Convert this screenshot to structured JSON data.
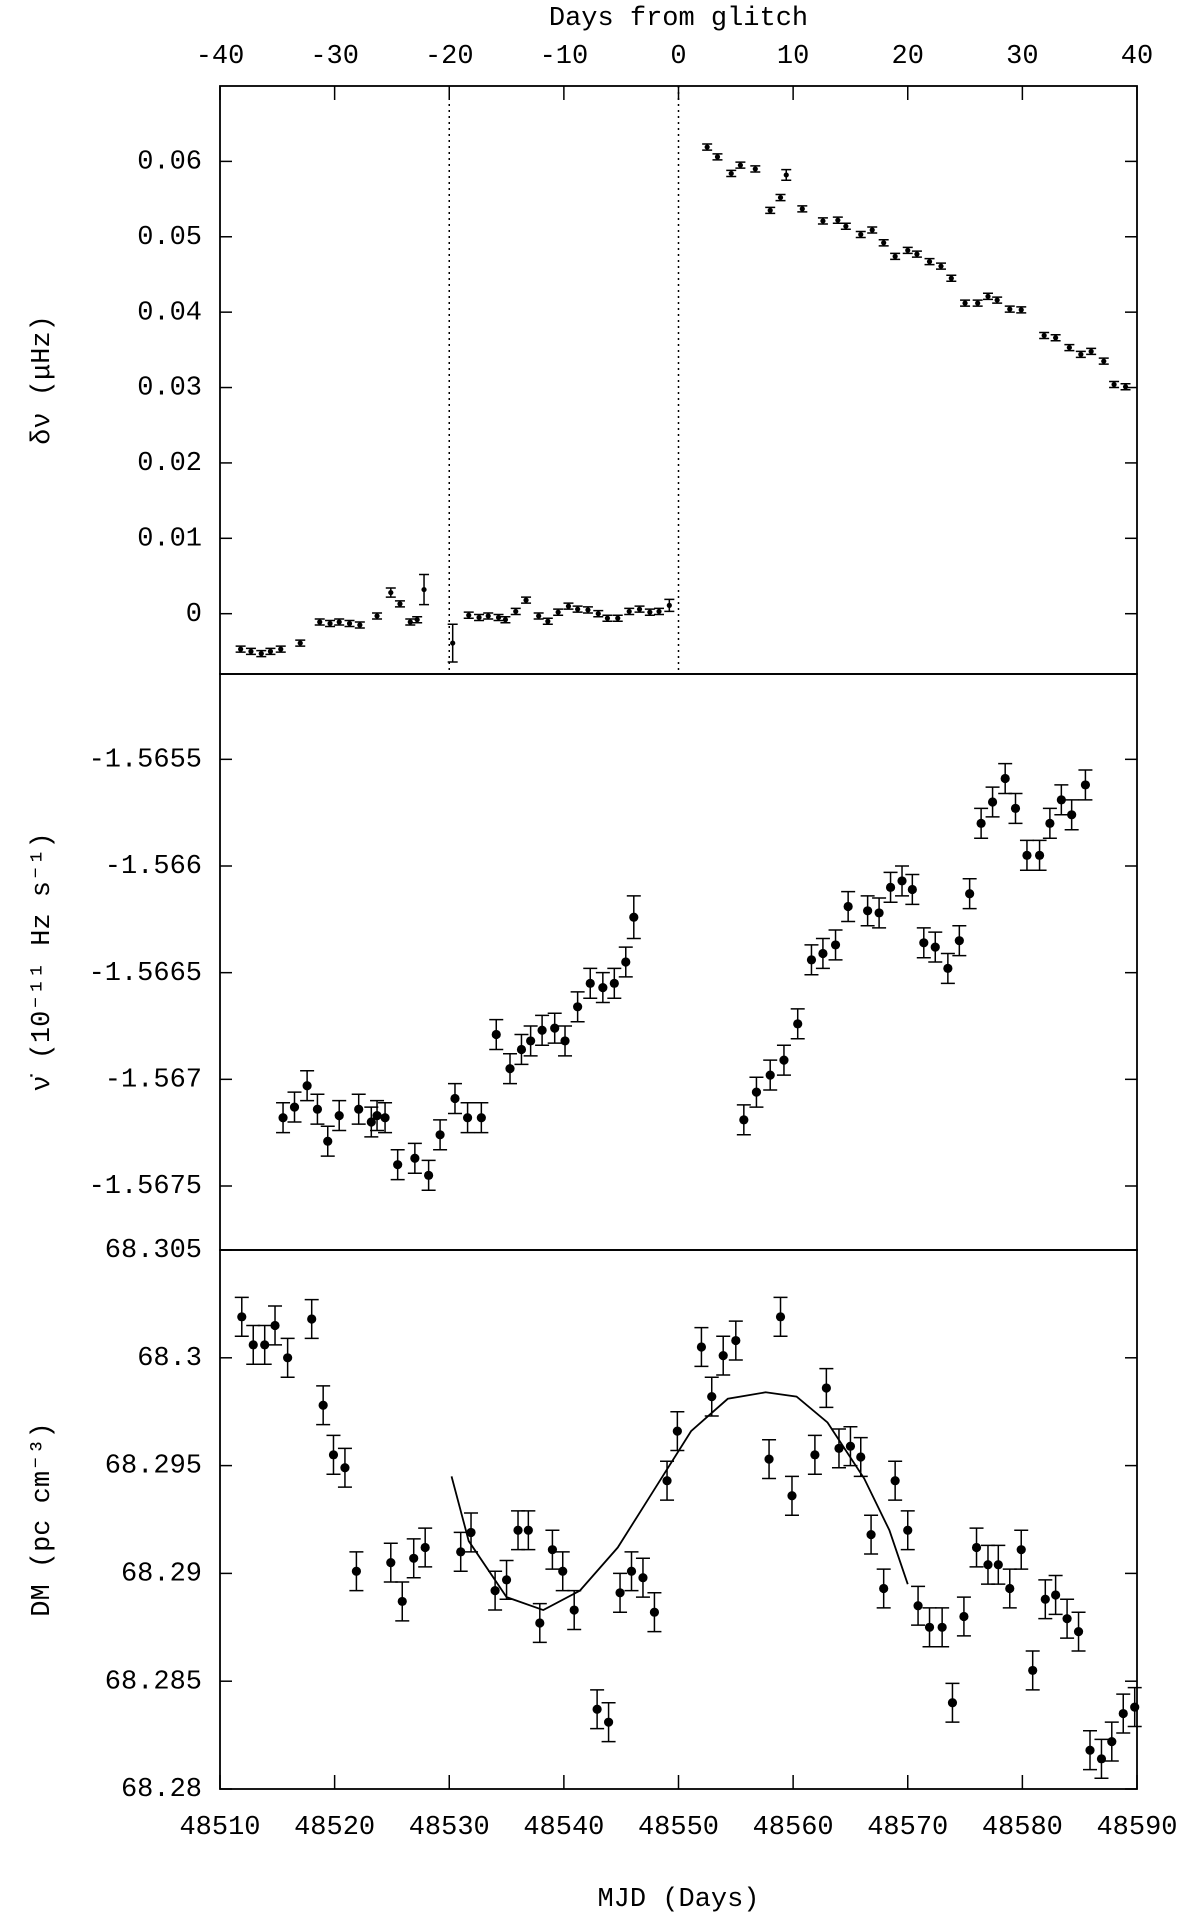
{
  "chart_data": [
    {
      "type": "scatter",
      "ylabel": "δν (μHz)",
      "x2label": "Days from glitch",
      "xlim": [
        48510,
        48590
      ],
      "x2lim": [
        -40,
        40
      ],
      "x2ticks": [
        -40,
        -30,
        -20,
        -10,
        0,
        10,
        20,
        30,
        40
      ],
      "ylim": [
        -0.008,
        0.07
      ],
      "yticks": [
        0,
        0.01,
        0.02,
        0.03,
        0.04,
        0.05,
        0.06
      ],
      "vlines": [
        48530,
        48550
      ],
      "color": "#000000",
      "x": [
        48511.8,
        48512.7,
        48513.6,
        48514.4,
        48515.3,
        48517.0,
        48518.7,
        48519.6,
        48520.4,
        48521.3,
        48522.2,
        48523.7,
        48524.9,
        48525.7,
        48526.6,
        48527.2,
        48527.8,
        48530.3,
        48531.7,
        48532.6,
        48533.4,
        48534.3,
        48534.9,
        48535.8,
        48536.7,
        48537.8,
        48538.6,
        48539.5,
        48540.4,
        48541.2,
        48542.1,
        48543.0,
        48543.8,
        48544.7,
        48545.7,
        48546.6,
        48547.5,
        48548.3,
        48549.2,
        48552.5,
        48553.4,
        48554.6,
        48555.4,
        48556.7,
        48558.0,
        48558.9,
        48559.4,
        48560.8,
        48562.6,
        48563.9,
        48564.6,
        48565.9,
        48566.9,
        48567.9,
        48568.9,
        48570.0,
        48570.8,
        48571.9,
        48572.9,
        48573.8,
        48575.0,
        48576.1,
        48577.0,
        48577.8,
        48578.9,
        48579.9,
        48581.9,
        48582.9,
        48584.1,
        48585.1,
        48586.0,
        48587.1,
        48588.0,
        48589.0
      ],
      "values": [
        -0.0047,
        -0.005,
        -0.0053,
        -0.005,
        -0.0047,
        -0.0039,
        -0.0011,
        -0.0013,
        -0.0011,
        -0.0013,
        -0.0015,
        -0.0003,
        0.0028,
        0.0013,
        -0.0011,
        -0.0008,
        0.0032,
        -0.0039,
        -0.0002,
        -0.0005,
        -0.0003,
        -0.0005,
        -0.0008,
        0.0003,
        0.0018,
        -0.0003,
        -0.001,
        0.0002,
        0.001,
        0.0006,
        0.0005,
        0,
        -0.0006,
        -0.0006,
        0.0003,
        0.0006,
        0.0002,
        0.0003,
        0.0011,
        0.0619,
        0.0606,
        0.0584,
        0.0595,
        0.059,
        0.0535,
        0.0552,
        0.0582,
        0.0537,
        0.0521,
        0.0522,
        0.0514,
        0.0503,
        0.0509,
        0.0492,
        0.0474,
        0.0482,
        0.0477,
        0.0467,
        0.0461,
        0.0445,
        0.0412,
        0.0412,
        0.0421,
        0.0416,
        0.0404,
        0.0403,
        0.0369,
        0.0366,
        0.0353,
        0.0344,
        0.0348,
        0.0335,
        0.0304,
        0.0301
      ],
      "errors": [
        0.0004,
        0.0004,
        0.0004,
        0.0004,
        0.0004,
        0.0004,
        0.0004,
        0.0004,
        0.0004,
        0.0004,
        0.0004,
        0.0004,
        0.0006,
        0.0004,
        0.0004,
        0.0004,
        0.002,
        0.0025,
        0.0004,
        0.0004,
        0.0004,
        0.0004,
        0.0004,
        0.0004,
        0.0004,
        0.0004,
        0.0004,
        0.0004,
        0.0004,
        0.0004,
        0.0004,
        0.0004,
        0.0004,
        0.0004,
        0.0004,
        0.0004,
        0.0004,
        0.0004,
        0.0008,
        0.0004,
        0.0004,
        0.0004,
        0.0004,
        0.0004,
        0.0004,
        0.0004,
        0.0007,
        0.0004,
        0.0004,
        0.0004,
        0.0004,
        0.0004,
        0.0004,
        0.0004,
        0.0004,
        0.0004,
        0.0004,
        0.0004,
        0.0004,
        0.0004,
        0.0004,
        0.0004,
        0.0004,
        0.0004,
        0.0004,
        0.0004,
        0.0004,
        0.0004,
        0.0004,
        0.0004,
        0.0004,
        0.0004,
        0.0004,
        0.0004
      ]
    },
    {
      "type": "scatter",
      "ylabel": "ν̇ (10⁻¹¹ Hz s⁻¹)",
      "xlim": [
        48510,
        48590
      ],
      "ylim": [
        -1.5678,
        -1.5651
      ],
      "yticks": [
        -1.5675,
        -1.567,
        -1.5665,
        -1.566,
        -1.5655
      ],
      "color": "#000000",
      "x": [
        48515.5,
        48516.5,
        48517.6,
        48518.5,
        48519.4,
        48520.4,
        48522.1,
        48523.2,
        48523.7,
        48524.4,
        48525.5,
        48527.0,
        48528.2,
        48529.2,
        48530.5,
        48531.6,
        48532.8,
        48534.1,
        48535.3,
        48536.3,
        48537.1,
        48538.1,
        48539.2,
        48540.1,
        48541.2,
        48542.3,
        48543.4,
        48544.4,
        48545.4,
        48546.1,
        48555.7,
        48556.8,
        48558.0,
        48559.2,
        48560.4,
        48561.6,
        48562.6,
        48563.7,
        48564.8,
        48566.5,
        48567.5,
        48568.5,
        48569.5,
        48570.4,
        48571.4,
        48572.4,
        48573.5,
        48574.5,
        48575.4,
        48576.4,
        48577.4,
        48578.5,
        48579.4,
        48580.4,
        48581.5,
        48582.4,
        48583.4,
        48584.3,
        48585.5
      ],
      "values": [
        -1.56718,
        -1.56713,
        -1.56703,
        -1.56714,
        -1.56729,
        -1.56717,
        -1.56714,
        -1.5672,
        -1.56717,
        -1.56718,
        -1.5674,
        -1.56737,
        -1.56745,
        -1.56726,
        -1.56709,
        -1.56718,
        -1.56718,
        -1.56679,
        -1.56695,
        -1.56686,
        -1.56682,
        -1.56677,
        -1.56676,
        -1.56682,
        -1.56666,
        -1.56655,
        -1.56657,
        -1.56655,
        -1.56645,
        -1.56624,
        -1.56719,
        -1.56706,
        -1.56698,
        -1.56691,
        -1.56674,
        -1.56644,
        -1.56641,
        -1.56637,
        -1.56619,
        -1.56621,
        -1.56622,
        -1.5661,
        -1.56607,
        -1.56611,
        -1.56636,
        -1.56638,
        -1.56648,
        -1.56635,
        -1.56613,
        -1.5658,
        -1.5657,
        -1.56559,
        -1.56573,
        -1.56595,
        -1.56595,
        -1.5658,
        -1.56569,
        -1.56576,
        -1.56562
      ],
      "errors": [
        7e-05,
        7e-05,
        7e-05,
        7e-05,
        7e-05,
        7e-05,
        7e-05,
        7e-05,
        7e-05,
        7e-05,
        7e-05,
        7e-05,
        7e-05,
        7e-05,
        7e-05,
        7e-05,
        7e-05,
        7e-05,
        7e-05,
        7e-05,
        7e-05,
        7e-05,
        7e-05,
        7e-05,
        7e-05,
        7e-05,
        7e-05,
        7e-05,
        7e-05,
        0.0001,
        7e-05,
        7e-05,
        7e-05,
        7e-05,
        7e-05,
        7e-05,
        7e-05,
        7e-05,
        7e-05,
        7e-05,
        7e-05,
        7e-05,
        7e-05,
        7e-05,
        7e-05,
        7e-05,
        7e-05,
        7e-05,
        7e-05,
        7e-05,
        7e-05,
        7e-05,
        7e-05,
        7e-05,
        7e-05,
        7e-05,
        7e-05,
        7e-05,
        7e-05
      ]
    },
    {
      "type": "scatter",
      "ylabel": "DM (pc cm⁻³)",
      "xlabel": "MJD (Days)",
      "xlim": [
        48510,
        48590
      ],
      "xticks": [
        48510,
        48520,
        48530,
        48540,
        48550,
        48560,
        48570,
        48580,
        48590
      ],
      "ylim": [
        68.28,
        68.305
      ],
      "yticks": [
        68.28,
        68.285,
        68.29,
        68.295,
        68.3,
        68.305
      ],
      "color": "#000000",
      "x": [
        48511.9,
        48512.9,
        48513.9,
        48514.8,
        48515.9,
        48518.0,
        48519.0,
        48519.9,
        48520.9,
        48521.9,
        48524.9,
        48525.9,
        48526.9,
        48527.9,
        48531.0,
        48531.9,
        48534.0,
        48535.0,
        48536.0,
        48536.9,
        48537.9,
        48539.0,
        48539.9,
        48540.9,
        48542.9,
        48543.9,
        48544.9,
        48545.9,
        48546.9,
        48547.9,
        48549.0,
        48549.9,
        48552.0,
        48552.9,
        48553.9,
        48555.0,
        48557.9,
        48558.9,
        48559.9,
        48561.9,
        48562.9,
        48564.0,
        48565.0,
        48565.9,
        48566.8,
        48567.9,
        48568.9,
        48570.0,
        48570.9,
        48571.9,
        48573.0,
        48573.9,
        48574.9,
        48576.0,
        48577.0,
        48577.9,
        48578.9,
        48579.9,
        48580.9,
        48582.0,
        48582.9,
        48583.9,
        48584.9,
        48585.9,
        48586.9,
        48587.8,
        48588.8,
        48589.8
      ],
      "values": [
        68.3019,
        68.3006,
        68.3006,
        68.3015,
        68.3,
        68.3018,
        68.2978,
        68.2955,
        68.2949,
        68.2901,
        68.2905,
        68.2887,
        68.2907,
        68.2912,
        68.291,
        68.2919,
        68.2892,
        68.2897,
        68.292,
        68.292,
        68.2877,
        68.2911,
        68.2901,
        68.2883,
        68.2837,
        68.2831,
        68.2891,
        68.2901,
        68.2898,
        68.2882,
        68.2943,
        68.2966,
        68.3005,
        68.2982,
        68.3001,
        68.3008,
        68.2953,
        68.3019,
        68.2936,
        68.2955,
        68.2986,
        68.2958,
        68.2959,
        68.2954,
        68.2918,
        68.2893,
        68.2943,
        68.292,
        68.2885,
        68.2875,
        68.2875,
        68.284,
        68.288,
        68.2912,
        68.2904,
        68.2904,
        68.2893,
        68.2911,
        68.2855,
        68.2888,
        68.289,
        68.2879,
        68.2873,
        68.2818,
        68.2814,
        68.2822,
        68.2835,
        68.2838
      ],
      "errors": [
        0.0009,
        0.0009,
        0.0009,
        0.0009,
        0.0009,
        0.0009,
        0.0009,
        0.0009,
        0.0009,
        0.0009,
        0.0009,
        0.0009,
        0.0009,
        0.0009,
        0.0009,
        0.0009,
        0.0009,
        0.0009,
        0.0009,
        0.0009,
        0.0009,
        0.0009,
        0.0009,
        0.0009,
        0.0009,
        0.0009,
        0.0009,
        0.0009,
        0.0009,
        0.0009,
        0.0009,
        0.0009,
        0.0009,
        0.0009,
        0.0009,
        0.0009,
        0.0009,
        0.0009,
        0.0009,
        0.0009,
        0.0009,
        0.0009,
        0.0009,
        0.0009,
        0.0009,
        0.0009,
        0.0009,
        0.0009,
        0.0009,
        0.0009,
        0.0009,
        0.0009,
        0.0009,
        0.0009,
        0.0009,
        0.0009,
        0.0009,
        0.0009,
        0.0009,
        0.0009,
        0.0009,
        0.0009,
        0.0009,
        0.0009,
        0.0009,
        0.0009,
        0.0009,
        0.0009
      ],
      "fit": {
        "x": [
          48530.2,
          48531.7,
          48535.0,
          48538.2,
          48541.4,
          48544.7,
          48547.9,
          48551.1,
          48554.3,
          48557.6,
          48560.3,
          48563.0,
          48566.2,
          48568.4,
          48570.0
        ],
        "y": [
          68.2945,
          68.2915,
          68.2889,
          68.2883,
          68.2892,
          68.2912,
          68.2939,
          68.2966,
          68.2981,
          68.2984,
          68.2982,
          68.297,
          68.2944,
          68.292,
          68.2895
        ]
      }
    }
  ]
}
